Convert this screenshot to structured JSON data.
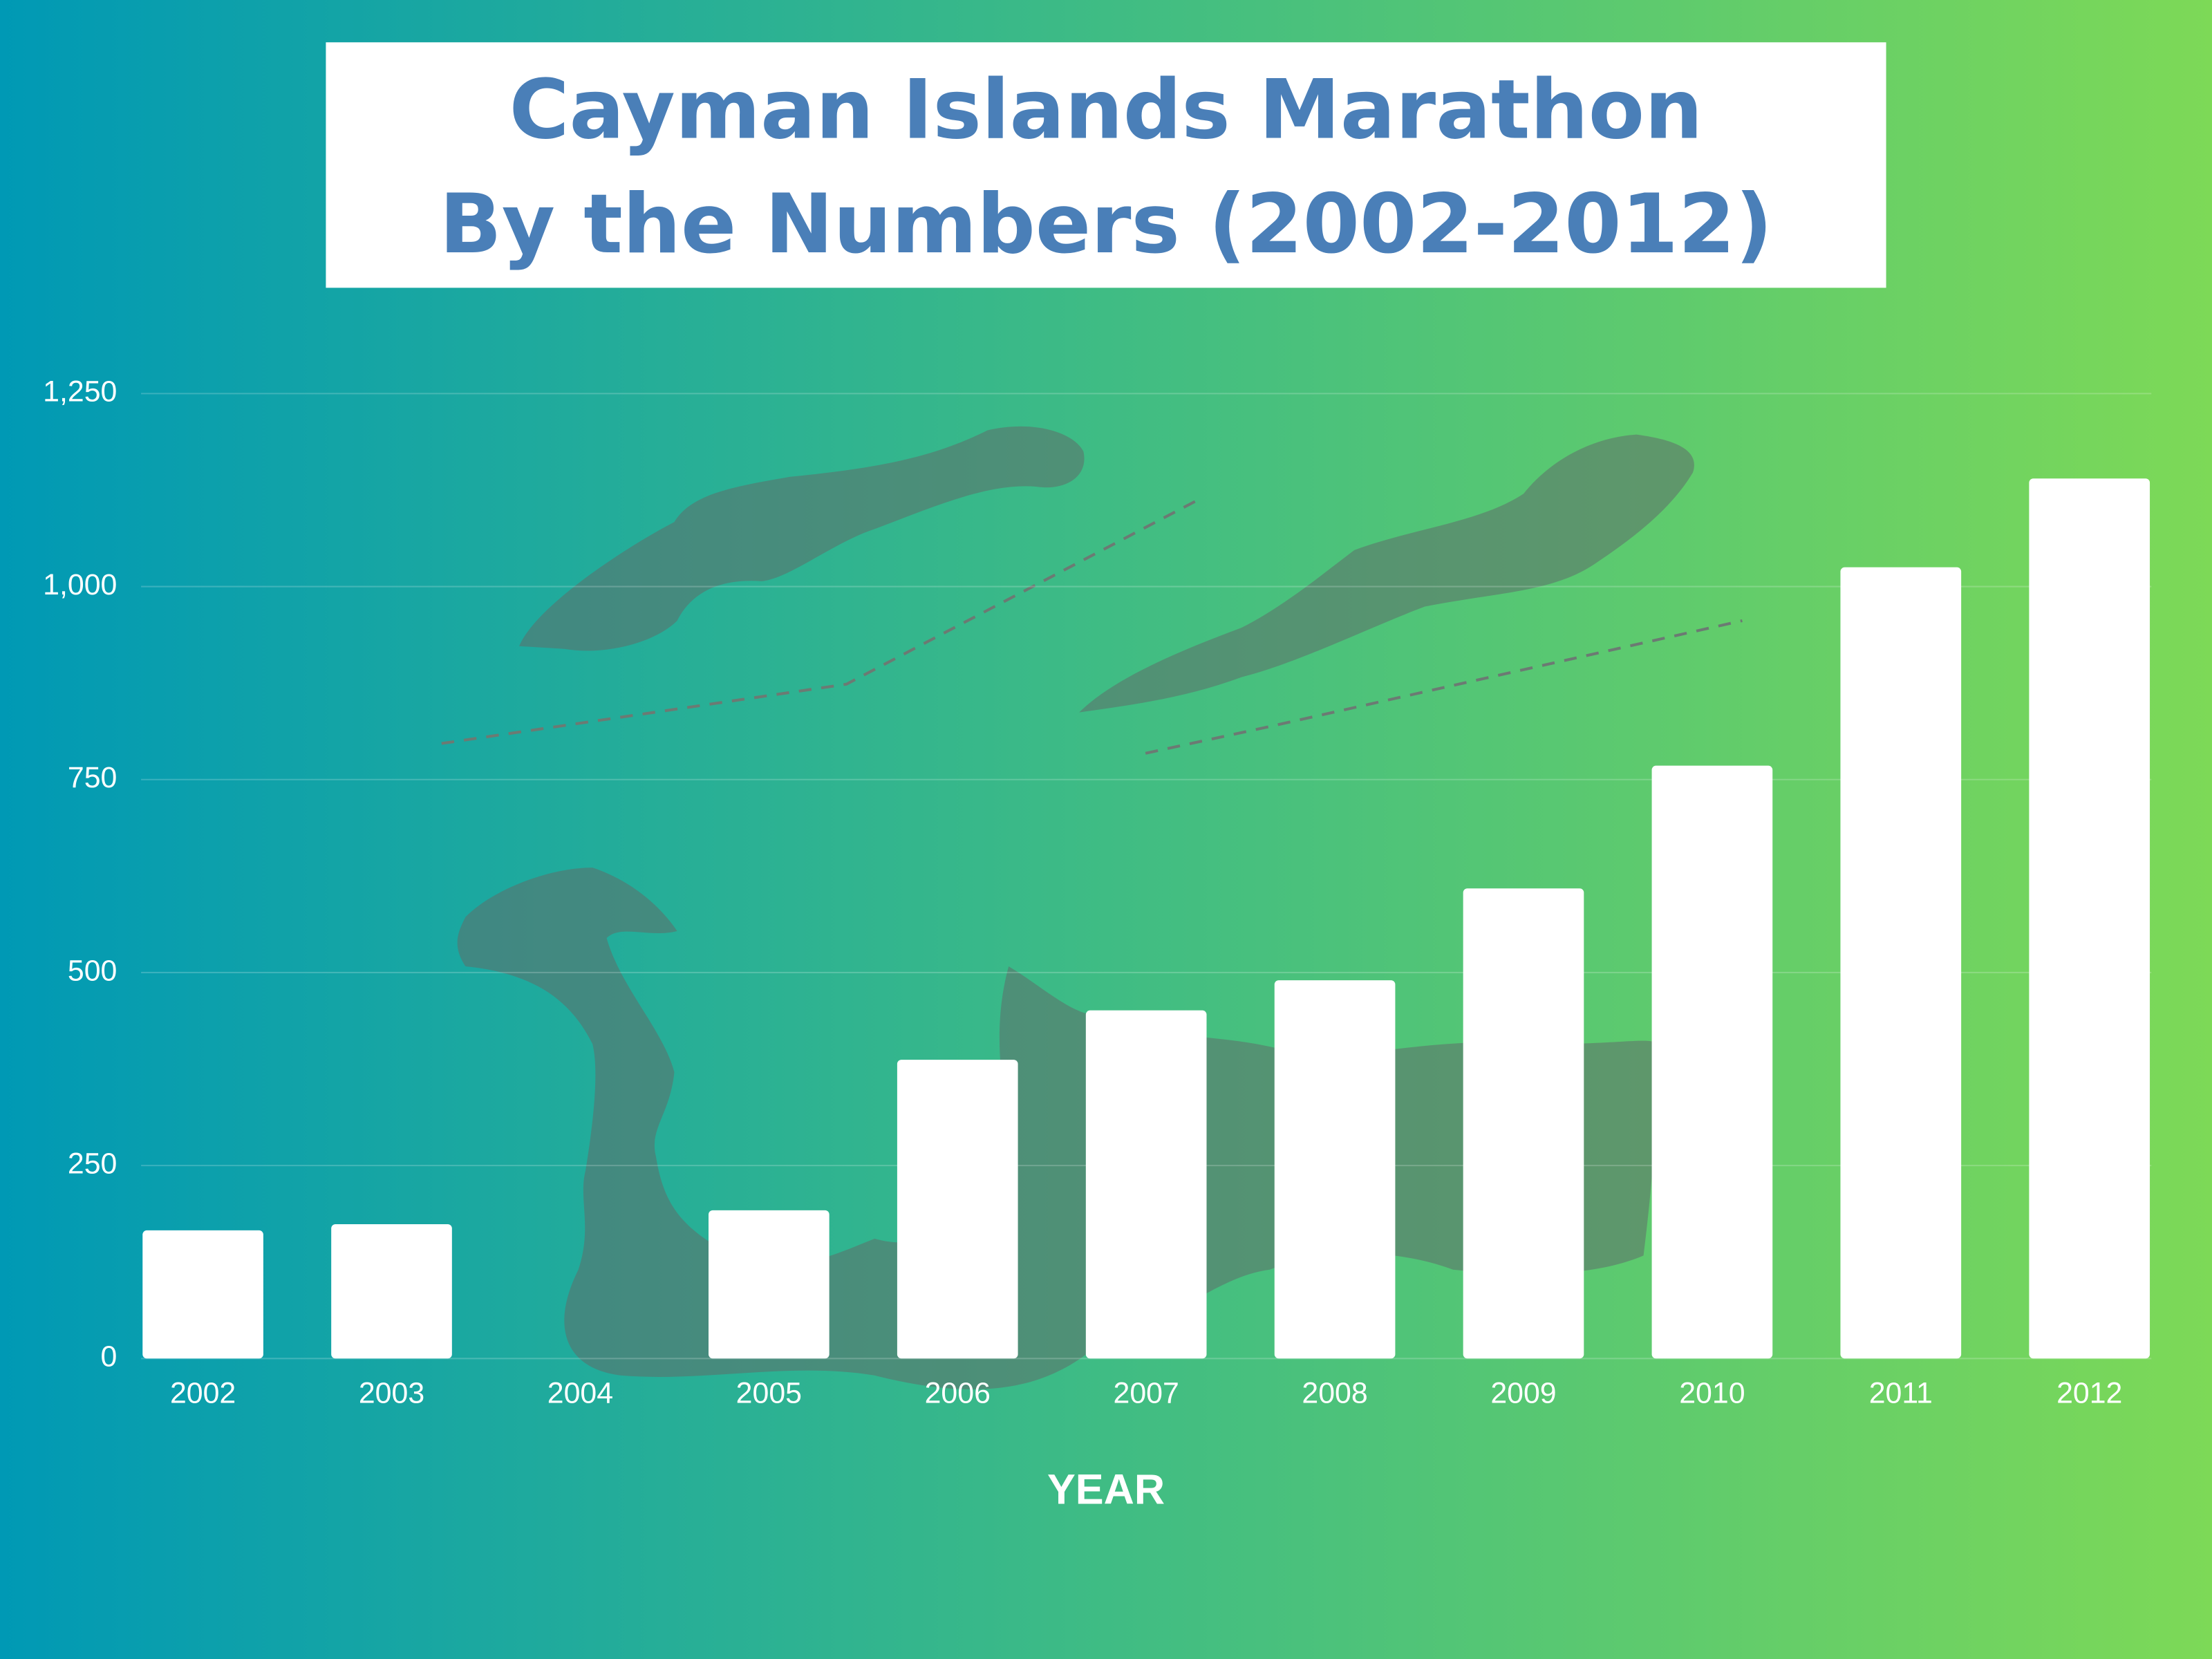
{
  "chart_data": {
    "type": "bar",
    "title": [
      "Cayman Islands Marathon",
      "By the Numbers (2002-2012)"
    ],
    "xlabel": "YEAR",
    "categories": [
      "2002",
      "2003",
      "2004",
      "2005",
      "2006",
      "2007",
      "2008",
      "2009",
      "2010",
      "2011",
      "2012"
    ],
    "values": [
      166,
      174,
      null,
      192,
      387,
      451,
      490,
      609,
      768,
      1025,
      1140
    ],
    "color": "#ffffff",
    "ylim": [
      0,
      1250
    ],
    "yticks": [
      0,
      250,
      500,
      750,
      {
        "value": 1000,
        "label": "1,000"
      },
      {
        "value": 1250,
        "label": "1,250"
      }
    ],
    "grid": true
  }
}
